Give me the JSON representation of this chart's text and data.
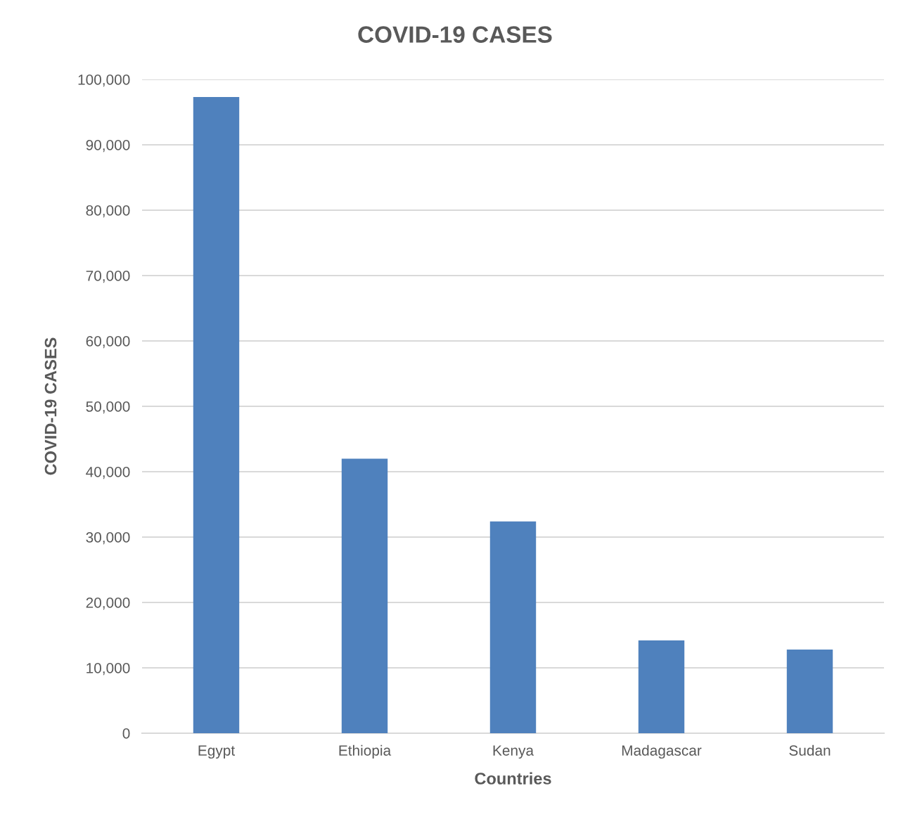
{
  "chart_data": {
    "type": "bar",
    "title": "COVID-19 CASES",
    "xlabel": "Countries",
    "ylabel": "COVID-19 CASES",
    "categories": [
      "Egypt",
      "Ethiopia",
      "Kenya",
      "Madagascar",
      "Sudan"
    ],
    "values": [
      97300,
      42000,
      32400,
      14200,
      12800
    ],
    "color": "#4f81bd",
    "ylim": [
      0,
      100000
    ],
    "yticks": [
      {
        "value": 0,
        "label": "0"
      },
      {
        "value": 10000,
        "label": "10,000"
      },
      {
        "value": 20000,
        "label": "20,000"
      },
      {
        "value": 30000,
        "label": "30,000"
      },
      {
        "value": 40000,
        "label": "40,000"
      },
      {
        "value": 50000,
        "label": "50,000"
      },
      {
        "value": 60000,
        "label": "60,000"
      },
      {
        "value": 70000,
        "label": "70,000"
      },
      {
        "value": 80000,
        "label": "80,000"
      },
      {
        "value": 90000,
        "label": "90,000"
      },
      {
        "value": 100000,
        "label": "100,000"
      }
    ],
    "grid": "y"
  }
}
